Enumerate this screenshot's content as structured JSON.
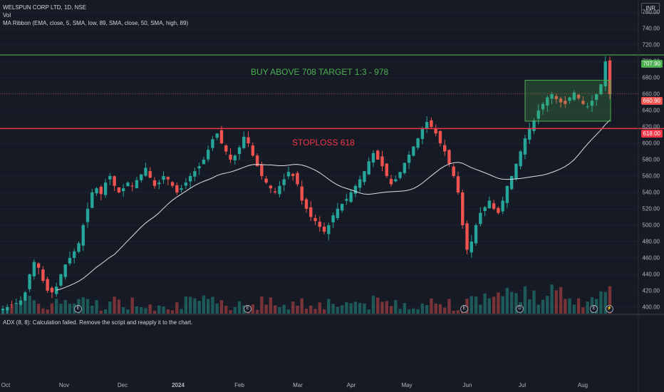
{
  "header": {
    "symbol_line": "WELSPUN CORP LTD, 1D, NSE",
    "vol_label": "Vol",
    "ma_line": "MA Ribbon (EMA, close, 5, SMA, low, 89, SMA, close, 50, SMA, high, 89)",
    "currency": "INR"
  },
  "adx_line": "ADX (8, 8): Calculation failed. Remove the script and reapply it to the chart.",
  "annotations": {
    "buy_text": "BUY  ABOVE 708 TARGET 1:3 -  978",
    "stoploss_text": "STOPLOSS 618"
  },
  "colors": {
    "up": "#26a69a",
    "down": "#ef5350",
    "buy_line": "#4caf50",
    "stop_line": "#f23645",
    "box": "#4caf50",
    "ma": "#e0e0e0"
  },
  "price_tags": {
    "buy_level": "707.90",
    "current": "660.90",
    "stoploss": "618.00"
  },
  "chart_data": {
    "type": "candlestick",
    "y_axis_ticks": [
      "760.00",
      "740.00",
      "720.00",
      "700.00",
      "680.00",
      "660.00",
      "640.00",
      "620.00",
      "600.00",
      "580.00",
      "560.00",
      "540.00",
      "520.00",
      "500.00",
      "480.00",
      "460.00",
      "440.00",
      "420.00",
      "400.00"
    ],
    "ylim": [
      392,
      775
    ],
    "x_axis_labels": [
      "Oct",
      "Nov",
      "Dec",
      "2024",
      "Feb",
      "Mar",
      "Apr",
      "May",
      "Jun",
      "Jul",
      "Aug"
    ],
    "horizontal_levels": {
      "buy": 707.9,
      "stoploss": 618
    },
    "consolidation_box": {
      "low": 627,
      "high": 677
    },
    "close_series": [
      398,
      400,
      402,
      405,
      408,
      418,
      440,
      455,
      448,
      432,
      420,
      418,
      425,
      440,
      452,
      460,
      468,
      478,
      500,
      520,
      540,
      545,
      538,
      552,
      560,
      548,
      540,
      545,
      552,
      548,
      555,
      562,
      570,
      558,
      548,
      552,
      560,
      556,
      548,
      540,
      545,
      552,
      560,
      566,
      572,
      580,
      592,
      605,
      612,
      600,
      590,
      580,
      585,
      595,
      608,
      600,
      585,
      572,
      560,
      552,
      545,
      540,
      548,
      556,
      565,
      560,
      550,
      530,
      520,
      510,
      505,
      498,
      492,
      500,
      512,
      520,
      526,
      532,
      540,
      548,
      556,
      566,
      578,
      588,
      580,
      572,
      560,
      550,
      556,
      565,
      576,
      586,
      596,
      606,
      618,
      626,
      620,
      612,
      600,
      590,
      575,
      560,
      540,
      500,
      470,
      480,
      500,
      515,
      522,
      530,
      520,
      515,
      530,
      548,
      560,
      575,
      590,
      606,
      618,
      628,
      640,
      648,
      656,
      660,
      654,
      650,
      648,
      656,
      662,
      655,
      648,
      645,
      652,
      660,
      672,
      700,
      660
    ]
  }
}
